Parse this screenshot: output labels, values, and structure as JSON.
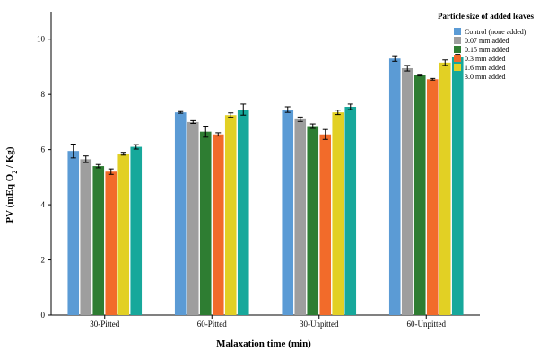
{
  "chart_data": {
    "type": "bar",
    "xlabel": "Malaxation time (min)",
    "ylabel_parts": [
      "PV (mEq O",
      "2",
      " / Kg)"
    ],
    "ylim": [
      0,
      11
    ],
    "yticks": [
      0,
      2,
      4,
      6,
      8,
      10
    ],
    "grid": false,
    "error_bars": true,
    "legend_title": "Particle size of added leaves",
    "legend_position": "top-right",
    "categories": [
      "30-Pitted",
      "60-Pitted",
      "30-Unpitted",
      "60-Unpitted"
    ],
    "series": [
      {
        "name": "Control (none added)",
        "color": "#5b9bd5",
        "values": [
          5.95,
          7.35,
          7.45,
          9.3
        ],
        "errors": [
          0.25,
          0.03,
          0.1,
          0.1
        ]
      },
      {
        "name": "0.07 mm added",
        "color": "#9e9e9e",
        "values": [
          5.65,
          7.0,
          7.1,
          8.95
        ],
        "errors": [
          0.12,
          0.05,
          0.08,
          0.1
        ]
      },
      {
        "name": "0.15 mm added",
        "color": "#2e7d32",
        "values": [
          5.4,
          6.65,
          6.85,
          8.7
        ],
        "errors": [
          0.06,
          0.2,
          0.08,
          0.03
        ]
      },
      {
        "name": "0.3 mm added",
        "color": "#f26b2a",
        "values": [
          5.2,
          6.55,
          6.55,
          8.55
        ],
        "errors": [
          0.1,
          0.06,
          0.18,
          0.03
        ]
      },
      {
        "name": "1.6 mm added",
        "color": "#e2d024",
        "values": [
          5.85,
          7.25,
          7.35,
          9.15
        ],
        "errors": [
          0.05,
          0.08,
          0.08,
          0.1
        ]
      },
      {
        "name": "3.0 mm added",
        "color": "#17a89b",
        "values": [
          6.1,
          7.45,
          7.55,
          9.35
        ],
        "errors": [
          0.08,
          0.2,
          0.1,
          0.1
        ]
      }
    ]
  }
}
